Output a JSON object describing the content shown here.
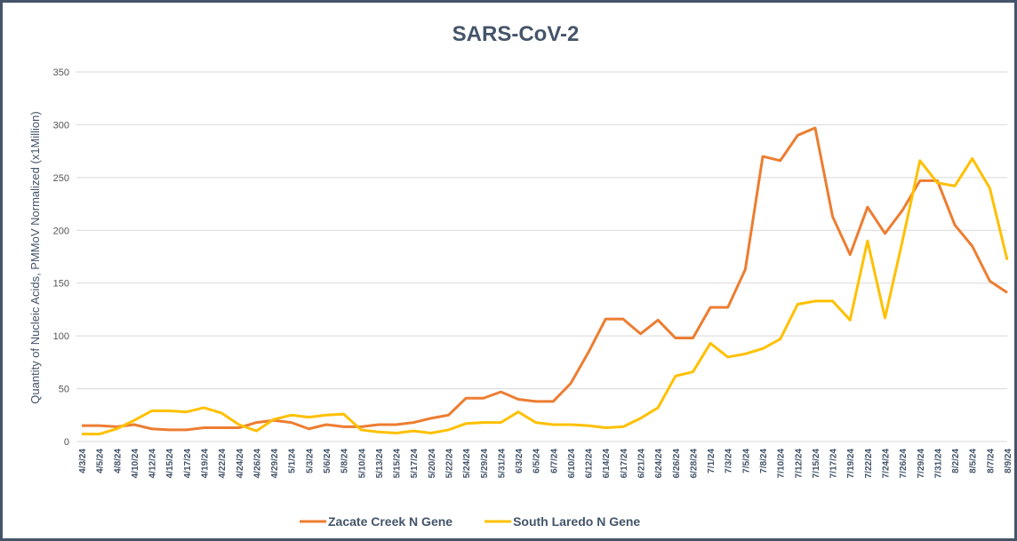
{
  "chart_data": {
    "type": "line",
    "title": "SARS-CoV-2",
    "y_label": "Quantity of Nucleic Acids, PMMoV Normalized (x1Million)",
    "categories": [
      "4/3/24",
      "4/5/24",
      "4/8/24",
      "4/10/24",
      "4/12/24",
      "4/15/24",
      "4/17/24",
      "4/19/24",
      "4/22/24",
      "4/24/24",
      "4/26/24",
      "4/29/24",
      "5/1/24",
      "5/3/24",
      "5/6/24",
      "5/8/24",
      "5/10/24",
      "5/13/24",
      "5/15/24",
      "5/17/24",
      "5/20/24",
      "5/22/24",
      "5/24/24",
      "5/29/24",
      "5/31/24",
      "6/3/24",
      "6/5/24",
      "6/7/24",
      "6/10/24",
      "6/12/24",
      "6/14/24",
      "6/17/24",
      "6/21/24",
      "6/24/24",
      "6/26/24",
      "6/28/24",
      "7/1/24",
      "7/3/24",
      "7/5/24",
      "7/8/24",
      "7/10/24",
      "7/12/24",
      "7/15/24",
      "7/17/24",
      "7/19/24",
      "7/22/24",
      "7/24/24",
      "7/26/24",
      "7/29/24",
      "7/31/24",
      "8/2/24",
      "8/5/24",
      "8/7/24",
      "8/9/24"
    ],
    "series": [
      {
        "name": "Zacate Creek N Gene",
        "color": "#ed7d31",
        "values": [
          15,
          15,
          14,
          16,
          12,
          11,
          11,
          13,
          13,
          13,
          18,
          20,
          18,
          12,
          16,
          14,
          14,
          16,
          16,
          18,
          22,
          25,
          41,
          41,
          47,
          40,
          38,
          38,
          55,
          84,
          116,
          116,
          102,
          115,
          98,
          98,
          127,
          127,
          163,
          270,
          266,
          290,
          297,
          213,
          177,
          222,
          197,
          219,
          247,
          247,
          205,
          185,
          152,
          141
        ]
      },
      {
        "name": "South Laredo N Gene",
        "color": "#ffc000",
        "values": [
          7,
          7,
          12,
          20,
          29,
          29,
          28,
          32,
          27,
          16,
          10,
          21,
          25,
          23,
          25,
          26,
          11,
          9,
          8,
          10,
          8,
          11,
          17,
          18,
          18,
          28,
          18,
          16,
          16,
          15,
          13,
          14,
          22,
          32,
          62,
          66,
          93,
          80,
          83,
          88,
          97,
          130,
          133,
          133,
          115,
          190,
          117,
          190,
          266,
          245,
          242,
          268,
          240,
          172
        ]
      }
    ],
    "ylim": [
      0,
      350
    ],
    "yticks": [
      0,
      50,
      100,
      150,
      200,
      250,
      300,
      350
    ],
    "grid": true
  }
}
